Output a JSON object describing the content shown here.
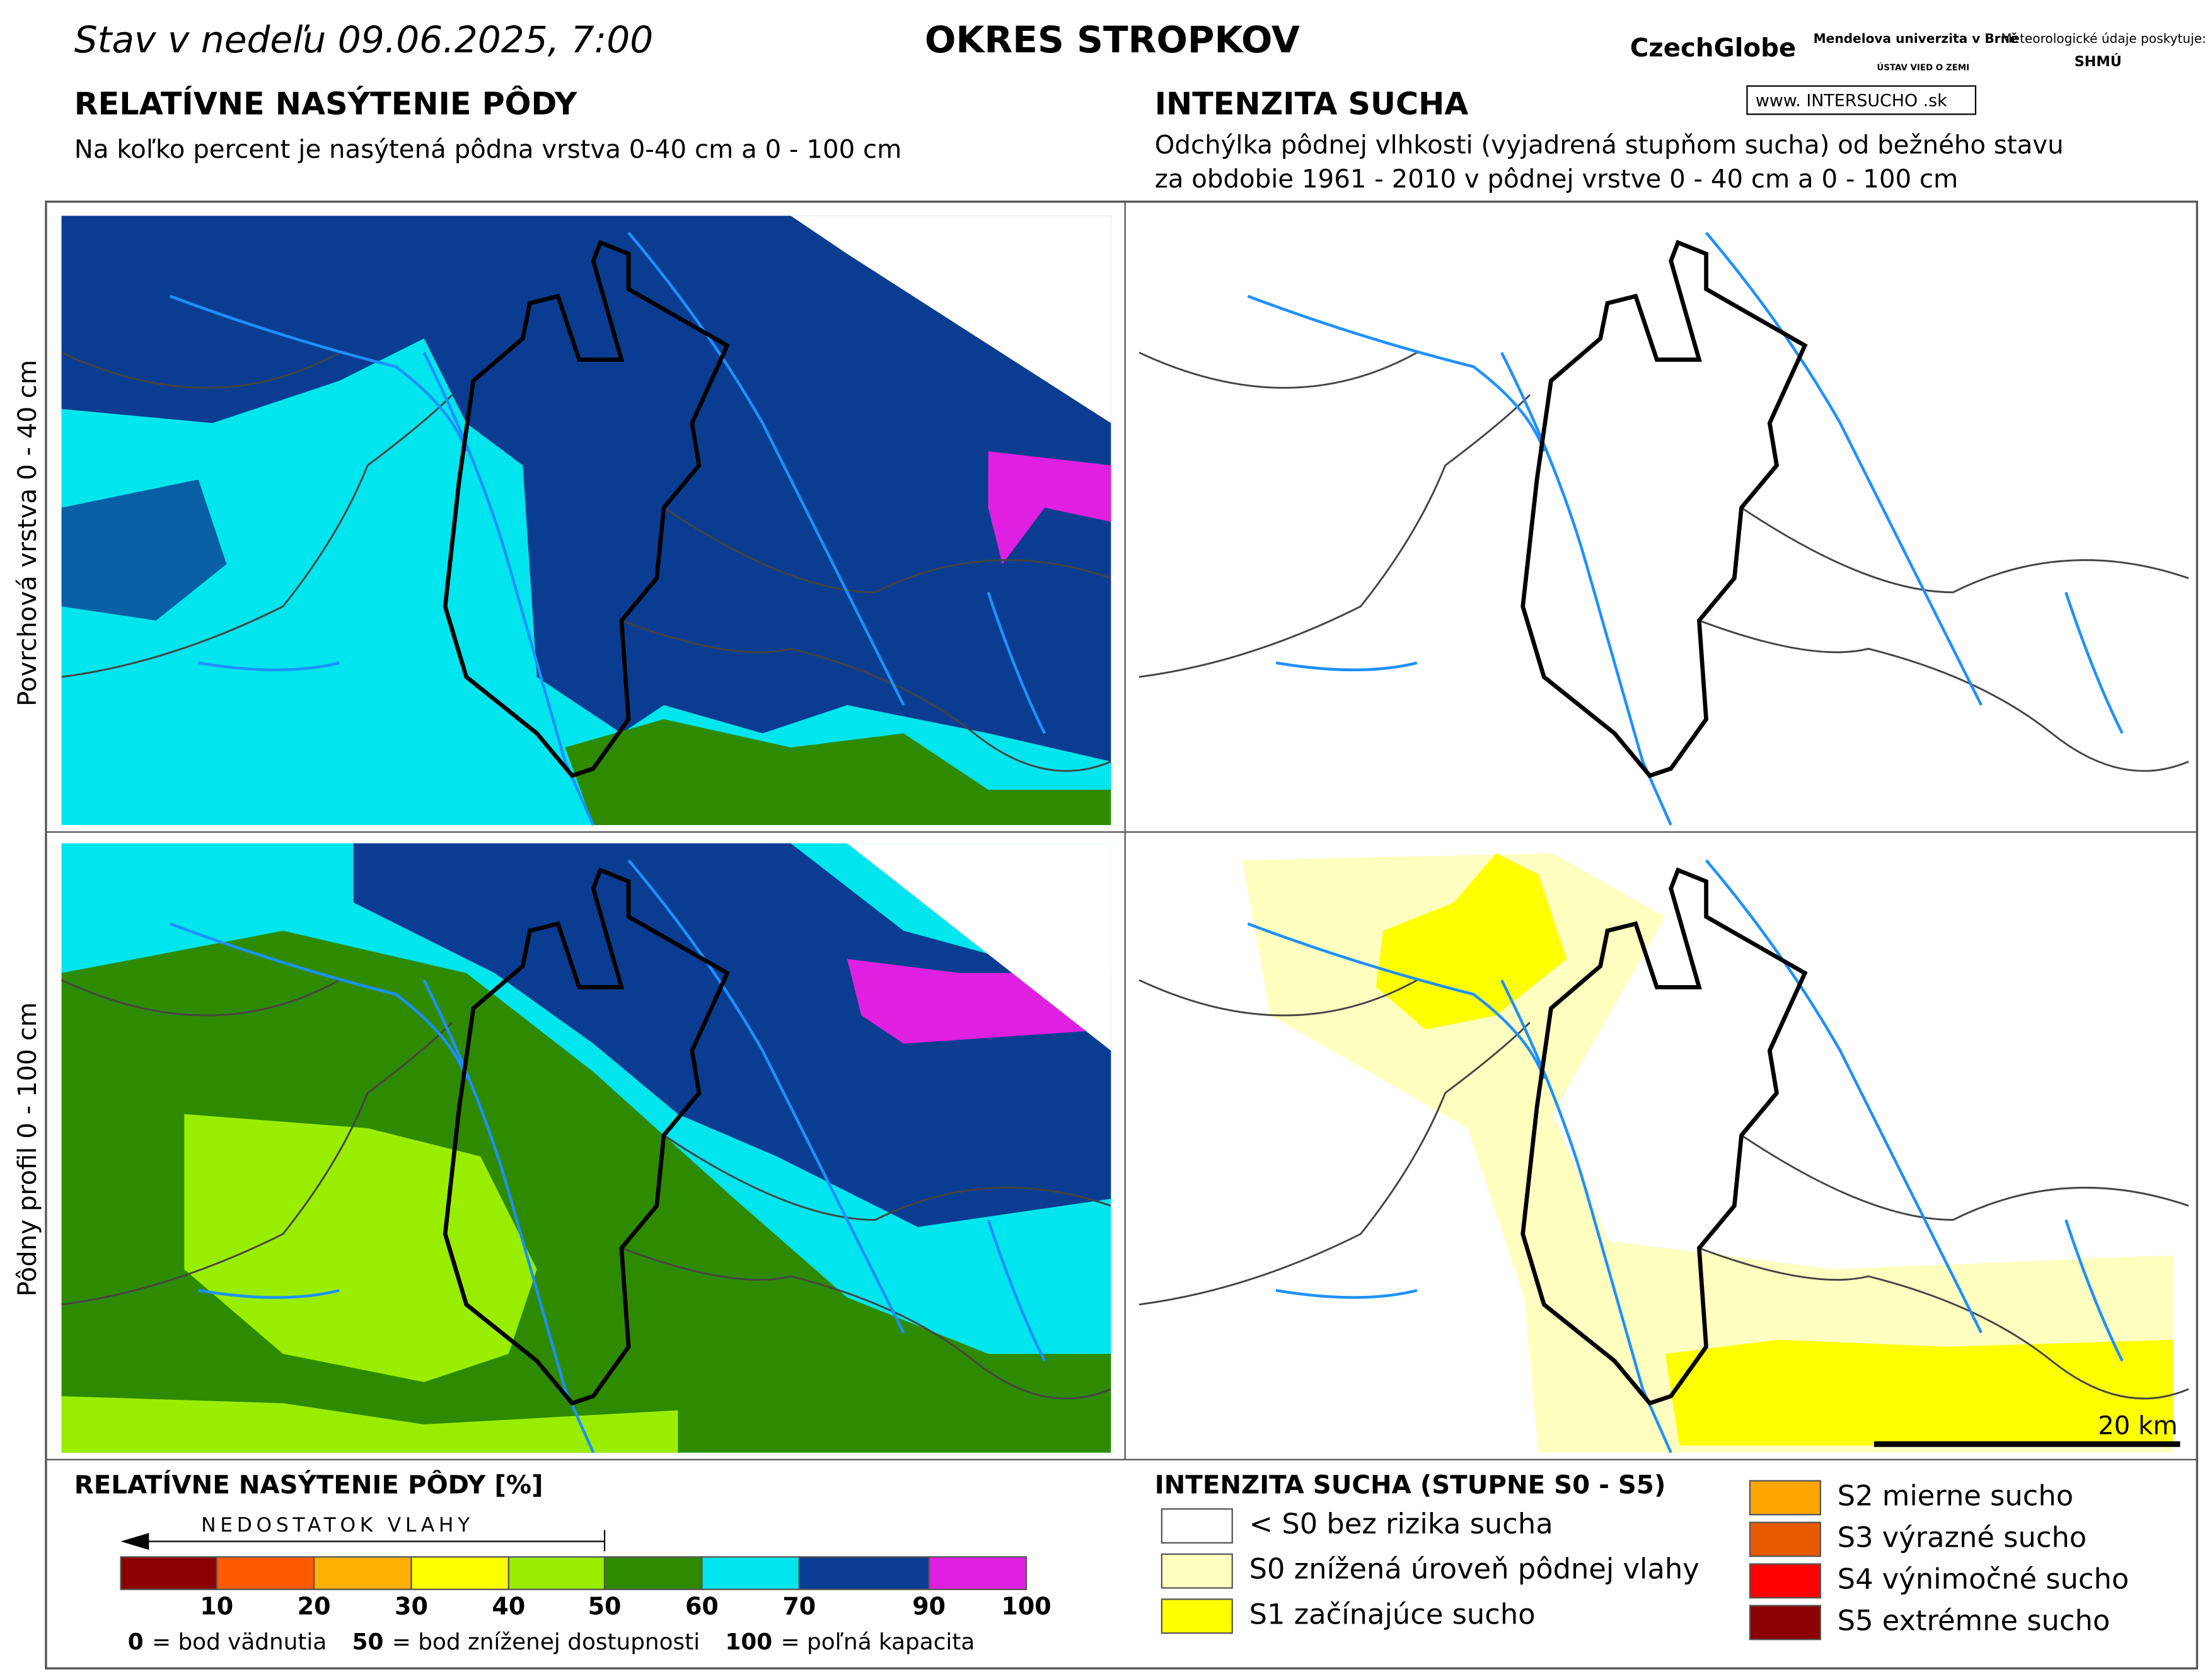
{
  "header": {
    "date_prefix": "Stav v nedeľu",
    "date": "09.06.2025, 7:00",
    "district": "OKRES  STROPKOV",
    "logos": [
      "CzechGlobe",
      "Mendelova univerzita v Brně",
      "ÚSTAV VIED O ZEMI",
      "Meteorologické údaje poskytuje:",
      "SHMÚ"
    ],
    "website": "www. INTERSUCHO .sk"
  },
  "left": {
    "title": "RELATÍVNE NASÝTENIE PÔDY",
    "subtitle": "Na koľko percent je nasýtená pôdna vrstva 0-40 cm a 0 - 100 cm"
  },
  "right": {
    "title": "INTENZITA SUCHA",
    "subtitle_lines": [
      "Odchýlka pôdnej vlhkosti (vyjadrená stupňom sucha) od bežného stavu",
      "za obdobie 1961 - 2010 v pôdnej vrstve 0 - 40 cm a 0 - 100 cm"
    ]
  },
  "row_labels": [
    "Povrchová vrstva 0 - 40 cm",
    "Pôdny profil 0 - 100 cm"
  ],
  "scale_bar": "20 km",
  "legend_saturation": {
    "title": "RELATÍVNE NASÝTENIE PÔDY [%]",
    "arrow": "NEDOSTATOK VLAHY",
    "colors": [
      "#8b0000",
      "#ff5a00",
      "#ffb000",
      "#ffff00",
      "#99ee00",
      "#2e8b00",
      "#00e5ee",
      "#0a3d91",
      "#e020e0"
    ],
    "ticks": [
      "10",
      "20",
      "30",
      "40",
      "50",
      "60",
      "70",
      "90",
      "100"
    ],
    "notes": [
      {
        "key": "0",
        "text": "= bod vädnutia"
      },
      {
        "key": "50",
        "text": "= bod zníženej dostupnosti"
      },
      {
        "key": "100",
        "text": "= poľná kapacita"
      }
    ]
  },
  "legend_drought": {
    "title": "INTENZITA SUCHA (STUPNE S0 - S5)",
    "items": [
      {
        "label": "< S0 bez rizika sucha",
        "color": "#ffffff"
      },
      {
        "label": "S0 znížená úroveň pôdnej vlahy",
        "color": "#ffffc0"
      },
      {
        "label": "S1 začínajúce sucho",
        "color": "#ffff00"
      },
      {
        "label": "S2 mierne sucho",
        "color": "#ffa500"
      },
      {
        "label": "S3 výrazné sucho",
        "color": "#e85a00"
      },
      {
        "label": "S4 výnimočné sucho",
        "color": "#ff0000"
      },
      {
        "label": "S5 extrémne sucho",
        "color": "#8b0000"
      }
    ]
  }
}
